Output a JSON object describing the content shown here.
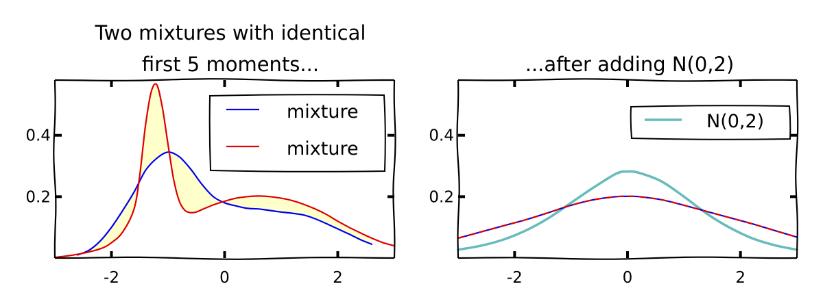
{
  "chart_data": [
    {
      "type": "line",
      "title_lines": [
        "Two mixtures with identical",
        "first 5 moments..."
      ],
      "xlim": [
        -3,
        3
      ],
      "ylim": [
        0,
        0.58
      ],
      "xticks": [
        {
          "value": -2,
          "label": "-2"
        },
        {
          "value": 0,
          "label": "0"
        },
        {
          "value": 2,
          "label": "2"
        }
      ],
      "yticks": [
        {
          "value": 0.2,
          "label": "0.2"
        },
        {
          "value": 0.4,
          "label": "0.4"
        }
      ],
      "grid": false,
      "legend_position": "upper-right",
      "fill_between": {
        "color": "#ffffcc"
      },
      "series": [
        {
          "name": "mixture",
          "color": "#0000ee",
          "x": [
            -2.6,
            -2.4,
            -2.2,
            -2.0,
            -1.8,
            -1.6,
            -1.4,
            -1.2,
            -1.0,
            -0.8,
            -0.6,
            -0.4,
            -0.2,
            0.0,
            0.2,
            0.4,
            0.6,
            0.8,
            1.0,
            1.2,
            1.4,
            1.6,
            1.8,
            2.0,
            2.2,
            2.4,
            2.6
          ],
          "y": [
            0.01,
            0.025,
            0.055,
            0.1,
            0.155,
            0.215,
            0.285,
            0.325,
            0.345,
            0.33,
            0.29,
            0.24,
            0.2,
            0.18,
            0.17,
            0.162,
            0.16,
            0.155,
            0.15,
            0.146,
            0.14,
            0.128,
            0.112,
            0.095,
            0.078,
            0.06,
            0.045
          ]
        },
        {
          "name": "mixture",
          "color": "#dd0000",
          "x": [
            -3.0,
            -2.6,
            -2.2,
            -2.0,
            -1.8,
            -1.6,
            -1.5,
            -1.4,
            -1.3,
            -1.2,
            -1.1,
            -1.0,
            -0.9,
            -0.8,
            -0.7,
            -0.6,
            -0.5,
            -0.4,
            -0.2,
            0.0,
            0.2,
            0.4,
            0.6,
            0.8,
            1.0,
            1.2,
            1.4,
            1.6,
            1.8,
            2.0,
            2.2,
            2.4,
            2.6,
            2.8,
            3.0
          ],
          "y": [
            0.002,
            0.012,
            0.03,
            0.05,
            0.085,
            0.16,
            0.27,
            0.43,
            0.54,
            0.565,
            0.49,
            0.37,
            0.255,
            0.185,
            0.155,
            0.148,
            0.15,
            0.158,
            0.173,
            0.185,
            0.195,
            0.2,
            0.202,
            0.2,
            0.195,
            0.187,
            0.175,
            0.16,
            0.142,
            0.12,
            0.1,
            0.082,
            0.065,
            0.05,
            0.04
          ]
        }
      ]
    },
    {
      "type": "line",
      "title_lines": [
        "...after adding N(0,2)"
      ],
      "xlim": [
        -3,
        3
      ],
      "ylim": [
        0,
        0.58
      ],
      "xticks": [
        {
          "value": -2,
          "label": "-2"
        },
        {
          "value": 0,
          "label": "0"
        },
        {
          "value": 2,
          "label": "2"
        }
      ],
      "yticks": [
        {
          "value": 0.2,
          "label": "0.2"
        },
        {
          "value": 0.4,
          "label": "0.4"
        }
      ],
      "grid": false,
      "legend_position": "upper-right",
      "series": [
        {
          "name": "N(0,2)",
          "color": "#66bbbb",
          "x": [
            -3.0,
            -2.6,
            -2.2,
            -1.8,
            -1.4,
            -1.0,
            -0.6,
            -0.2,
            0.0,
            0.2,
            0.6,
            1.0,
            1.4,
            1.8,
            2.2,
            2.6,
            3.0
          ],
          "y": [
            0.027,
            0.04,
            0.06,
            0.09,
            0.13,
            0.18,
            0.23,
            0.275,
            0.282,
            0.278,
            0.25,
            0.2,
            0.145,
            0.1,
            0.065,
            0.042,
            0.027
          ]
        },
        {
          "color": "#0000ee",
          "x": [
            -3.0,
            -2.6,
            -2.2,
            -1.8,
            -1.4,
            -1.0,
            -0.6,
            -0.2,
            0.0,
            0.2,
            0.6,
            1.0,
            1.4,
            1.8,
            2.2,
            2.6,
            3.0
          ],
          "y": [
            0.065,
            0.085,
            0.105,
            0.125,
            0.148,
            0.172,
            0.19,
            0.2,
            0.201,
            0.2,
            0.19,
            0.172,
            0.152,
            0.132,
            0.112,
            0.09,
            0.068
          ]
        },
        {
          "color": "#dd0000",
          "dashed": true,
          "x": [
            -3.0,
            -2.6,
            -2.2,
            -1.8,
            -1.4,
            -1.0,
            -0.6,
            -0.2,
            0.0,
            0.2,
            0.6,
            1.0,
            1.4,
            1.8,
            2.2,
            2.6,
            3.0
          ],
          "y": [
            0.065,
            0.085,
            0.105,
            0.125,
            0.148,
            0.172,
            0.19,
            0.2,
            0.201,
            0.2,
            0.19,
            0.172,
            0.152,
            0.132,
            0.112,
            0.09,
            0.068
          ]
        }
      ]
    }
  ]
}
